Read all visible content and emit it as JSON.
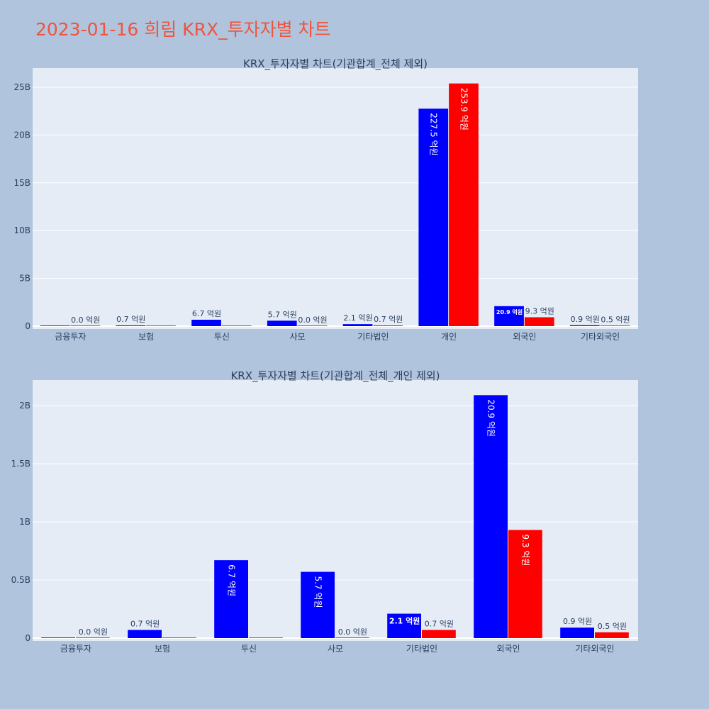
{
  "title": "2023-01-16 희림 KRX_투자자별 차트",
  "colors": {
    "buy": "#0000ff",
    "sell": "#ff0000",
    "title": "#ef553b"
  },
  "chart_data": [
    {
      "type": "bar",
      "title": "KRX_투자자별 차트(기관합계_전체 제외)",
      "categories": [
        "금융투자",
        "보험",
        "투신",
        "사모",
        "기타법인",
        "개인",
        "외국인",
        "기타외국인"
      ],
      "ylim": [
        0,
        27000000000
      ],
      "yticks": [
        0,
        5000000000,
        10000000000,
        15000000000,
        20000000000,
        25000000000
      ],
      "ytick_labels": [
        "0",
        "5B",
        "10B",
        "15B",
        "20B",
        "25B"
      ],
      "series": [
        {
          "color": "#0000ff",
          "values": [
            0,
            70000000,
            670000000,
            570000000,
            210000000,
            22750000000,
            2090000000,
            90000000
          ],
          "labels": [
            "",
            "0.7 억원",
            "6.7 억원",
            "5.7 억원",
            "2.1 억원",
            "227.5 억원",
            "20.9 억원",
            "0.9 억원"
          ]
        },
        {
          "color": "#ff0000",
          "values": [
            0,
            0,
            0,
            0,
            70000000,
            25390000000,
            930000000,
            50000000
          ],
          "labels": [
            "0.0 억원",
            "",
            "",
            "0.0 억원",
            "0.7 억원",
            "253.9 억원",
            "9.3 억원",
            "0.5 억원"
          ]
        }
      ]
    },
    {
      "type": "bar",
      "title": "KRX_투자자별 차트(기관합계_전체_개인 제외)",
      "categories": [
        "금융투자",
        "보험",
        "투신",
        "사모",
        "기타법인",
        "외국인",
        "기타외국인"
      ],
      "ylim": [
        0,
        2220000000
      ],
      "yticks": [
        0,
        500000000,
        1000000000,
        1500000000,
        2000000000
      ],
      "ytick_labels": [
        "0",
        "0.5B",
        "1B",
        "1.5B",
        "2B"
      ],
      "series": [
        {
          "color": "#0000ff",
          "values": [
            0,
            70000000,
            670000000,
            570000000,
            210000000,
            2090000000,
            90000000
          ],
          "labels": [
            "",
            "0.7 억원",
            "6.7 억원",
            "5.7 억원",
            "2.1 억원",
            "20.9 억원",
            "0.9 억원"
          ]
        },
        {
          "color": "#ff0000",
          "values": [
            0,
            0,
            0,
            0,
            70000000,
            930000000,
            50000000
          ],
          "labels": [
            "0.0 억원",
            "",
            "",
            "0.0 억원",
            "0.7 억원",
            "9.3 억원",
            "0.5 억원"
          ]
        }
      ]
    }
  ]
}
